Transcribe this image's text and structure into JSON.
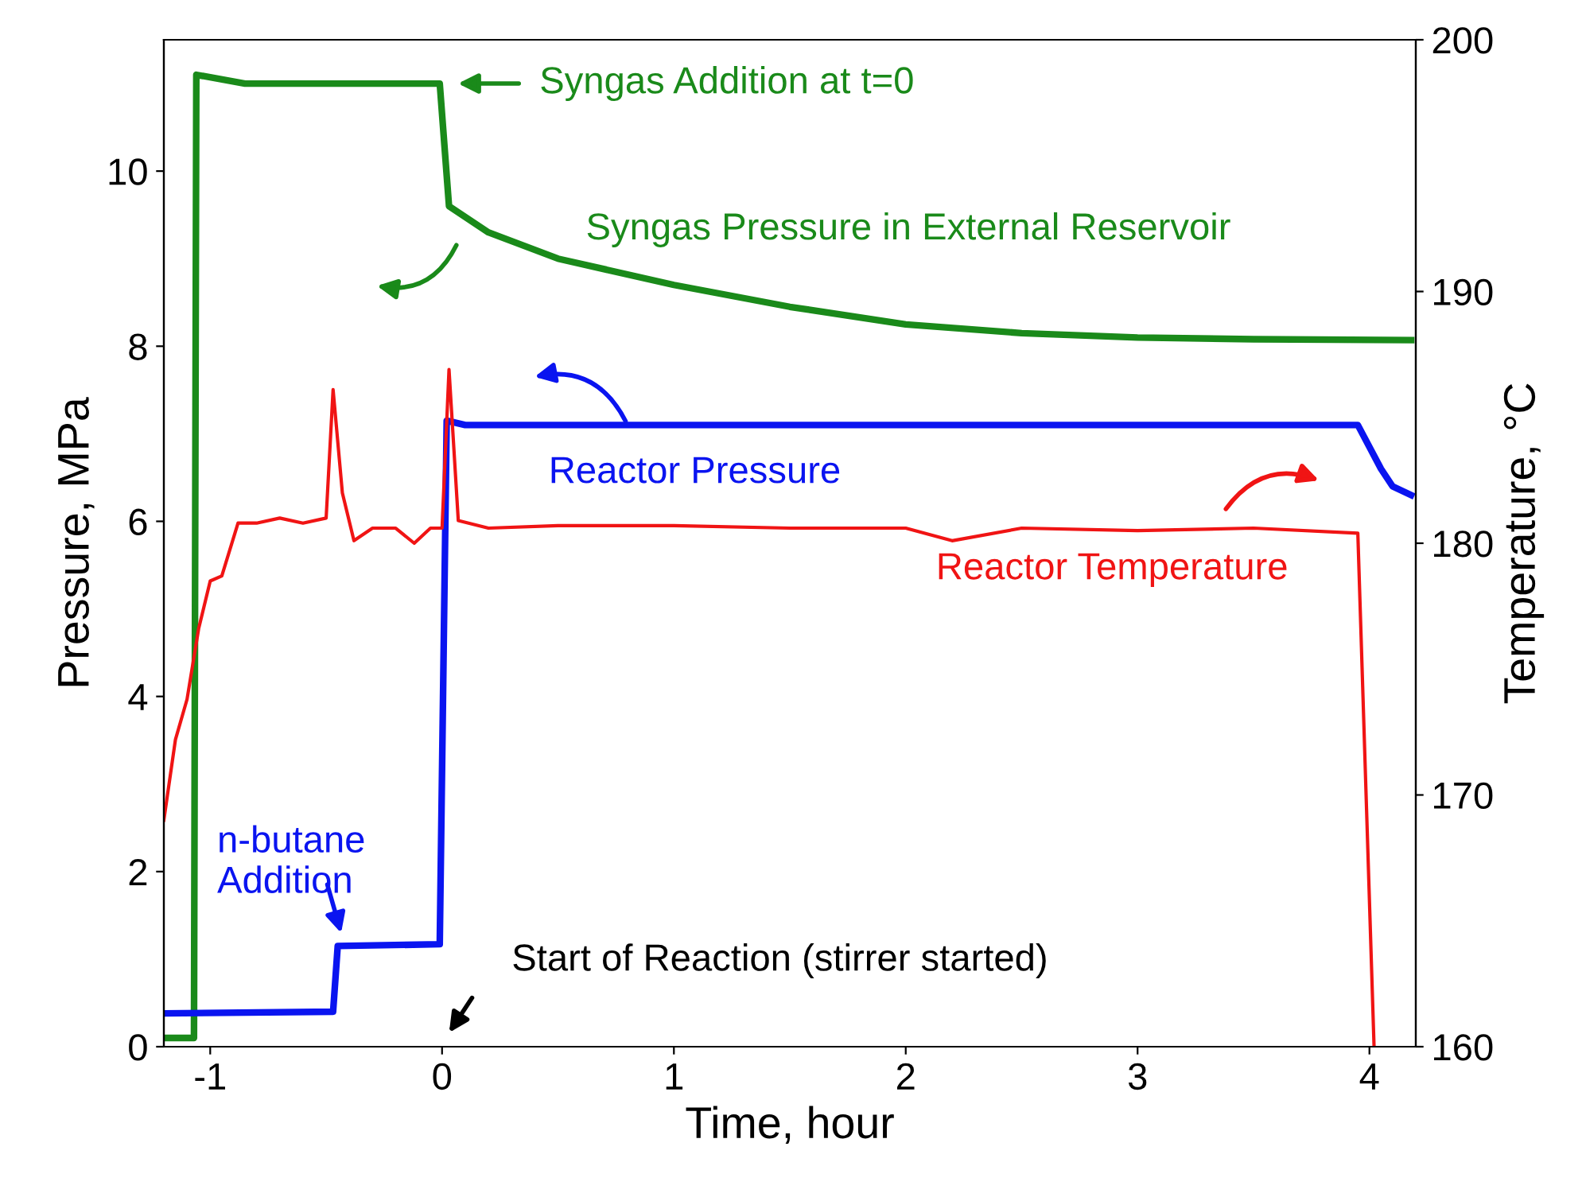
{
  "chart_data": {
    "type": "line",
    "xlabel": "Time, hour",
    "ylabel": "Pressure, MPa",
    "y2label": "Temperature, °C",
    "xlim": [
      -1.2,
      4.2
    ],
    "xticks": [
      -1,
      0,
      1,
      2,
      3,
      4
    ],
    "ylim": [
      0,
      11.5
    ],
    "yticks": [
      0,
      2,
      4,
      6,
      8,
      10
    ],
    "y2lim": [
      160,
      200
    ],
    "y2ticks": [
      160,
      170,
      180,
      190,
      200
    ],
    "grid": false,
    "legend": "center",
    "marker": "none",
    "line_style": "solid",
    "series": [
      {
        "name": "Syngas Pressure in External Reservoir",
        "color": "#1a8a1a",
        "x": [
          -1.2,
          -1.07,
          -1.06,
          -0.85,
          -0.01,
          0.03,
          0.2,
          0.5,
          1.0,
          1.5,
          2.0,
          2.5,
          3.0,
          3.5,
          4.18
        ],
        "values": [
          0.1,
          0.1,
          11.1,
          11.0,
          11.0,
          9.6,
          9.3,
          9.0,
          8.7,
          8.45,
          8.25,
          8.15,
          8.1,
          8.08,
          8.07
        ]
      },
      {
        "name": "Reactor Pressure",
        "color": "#0a14f0",
        "x": [
          -1.2,
          -0.47,
          -0.45,
          -0.01,
          0.02,
          0.1,
          1.0,
          2.0,
          3.0,
          3.95,
          4.05,
          4.1,
          4.18
        ],
        "values": [
          0.38,
          0.4,
          1.15,
          1.17,
          7.15,
          7.1,
          7.1,
          7.1,
          7.1,
          7.1,
          6.6,
          6.4,
          6.3
        ]
      },
      {
        "name": "Reactor Temperature",
        "color": "#f01414",
        "axis": "y2",
        "x": [
          -1.2,
          -1.15,
          -1.1,
          -1.05,
          -1.0,
          -0.95,
          -0.88,
          -0.8,
          -0.7,
          -0.6,
          -0.5,
          -0.47,
          -0.43,
          -0.38,
          -0.3,
          -0.2,
          -0.12,
          -0.05,
          0.0,
          0.03,
          0.07,
          0.2,
          0.5,
          1.0,
          1.5,
          2.0,
          2.2,
          2.5,
          3.0,
          3.5,
          3.95,
          4.02
        ],
        "values": [
          169,
          172.2,
          173.8,
          176.6,
          178.5,
          178.7,
          180.8,
          180.8,
          181,
          180.8,
          181,
          186.1,
          182,
          180.1,
          180.6,
          180.6,
          180,
          180.6,
          180.6,
          186.9,
          180.9,
          180.6,
          180.7,
          180.7,
          180.6,
          180.6,
          180.1,
          180.6,
          180.5,
          180.6,
          180.4,
          160
        ]
      }
    ],
    "annotations": [
      "Syngas Addition at t=0",
      "Start of Reaction (stirrer started)",
      "n-butane\nAddition"
    ]
  }
}
